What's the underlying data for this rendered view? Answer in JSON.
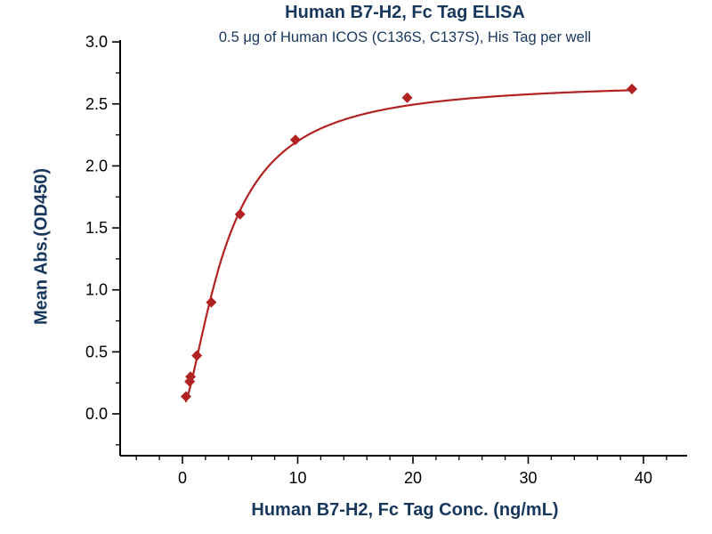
{
  "chart_data": {
    "type": "scatter",
    "title": "Human B7-H2, Fc Tag ELISA",
    "subtitle": "0.5 μg of Human ICOS (C136S, C137S), His Tag per well",
    "xlabel": "Human B7-H2, Fc Tag Conc. (ng/mL)",
    "ylabel": "Mean Abs.(OD450)",
    "points": [
      [
        0.31,
        0.14
      ],
      [
        0.63,
        0.26
      ],
      [
        0.7,
        0.3
      ],
      [
        1.25,
        0.47
      ],
      [
        2.5,
        0.9
      ],
      [
        5.0,
        1.61
      ],
      [
        9.8,
        2.21
      ],
      [
        19.5,
        2.55
      ],
      [
        39.0,
        2.62
      ]
    ],
    "fit": {
      "model": "4PL",
      "bottom": 0.05,
      "top": 2.68,
      "ec50": 3.8,
      "hill": 1.55,
      "x_start": 0.3,
      "x_end": 39.0
    },
    "x_axis": {
      "major_ticks": [
        0,
        10,
        20,
        30,
        40
      ],
      "major_labels": [
        "0",
        "10",
        "20",
        "30",
        "40"
      ],
      "minor_step": 2,
      "minor_range": [
        -4,
        42
      ],
      "range_shown": [
        0,
        40
      ]
    },
    "y_axis": {
      "major_ticks": [
        0,
        0.5,
        1,
        1.5,
        2,
        2.5,
        3
      ],
      "major_labels": [
        "0.0",
        "0.5",
        "1.0",
        "1.5",
        "2.0",
        "2.5",
        "3.0"
      ],
      "minor_step": 0.25,
      "minor_range": [
        -0.25,
        3
      ],
      "range_shown": [
        0,
        3
      ]
    },
    "legend": "none",
    "grid": "off",
    "colors": {
      "series": "#b22222",
      "title_text": "#17375d",
      "tick_text": "#000000",
      "axis": "#000000"
    }
  }
}
